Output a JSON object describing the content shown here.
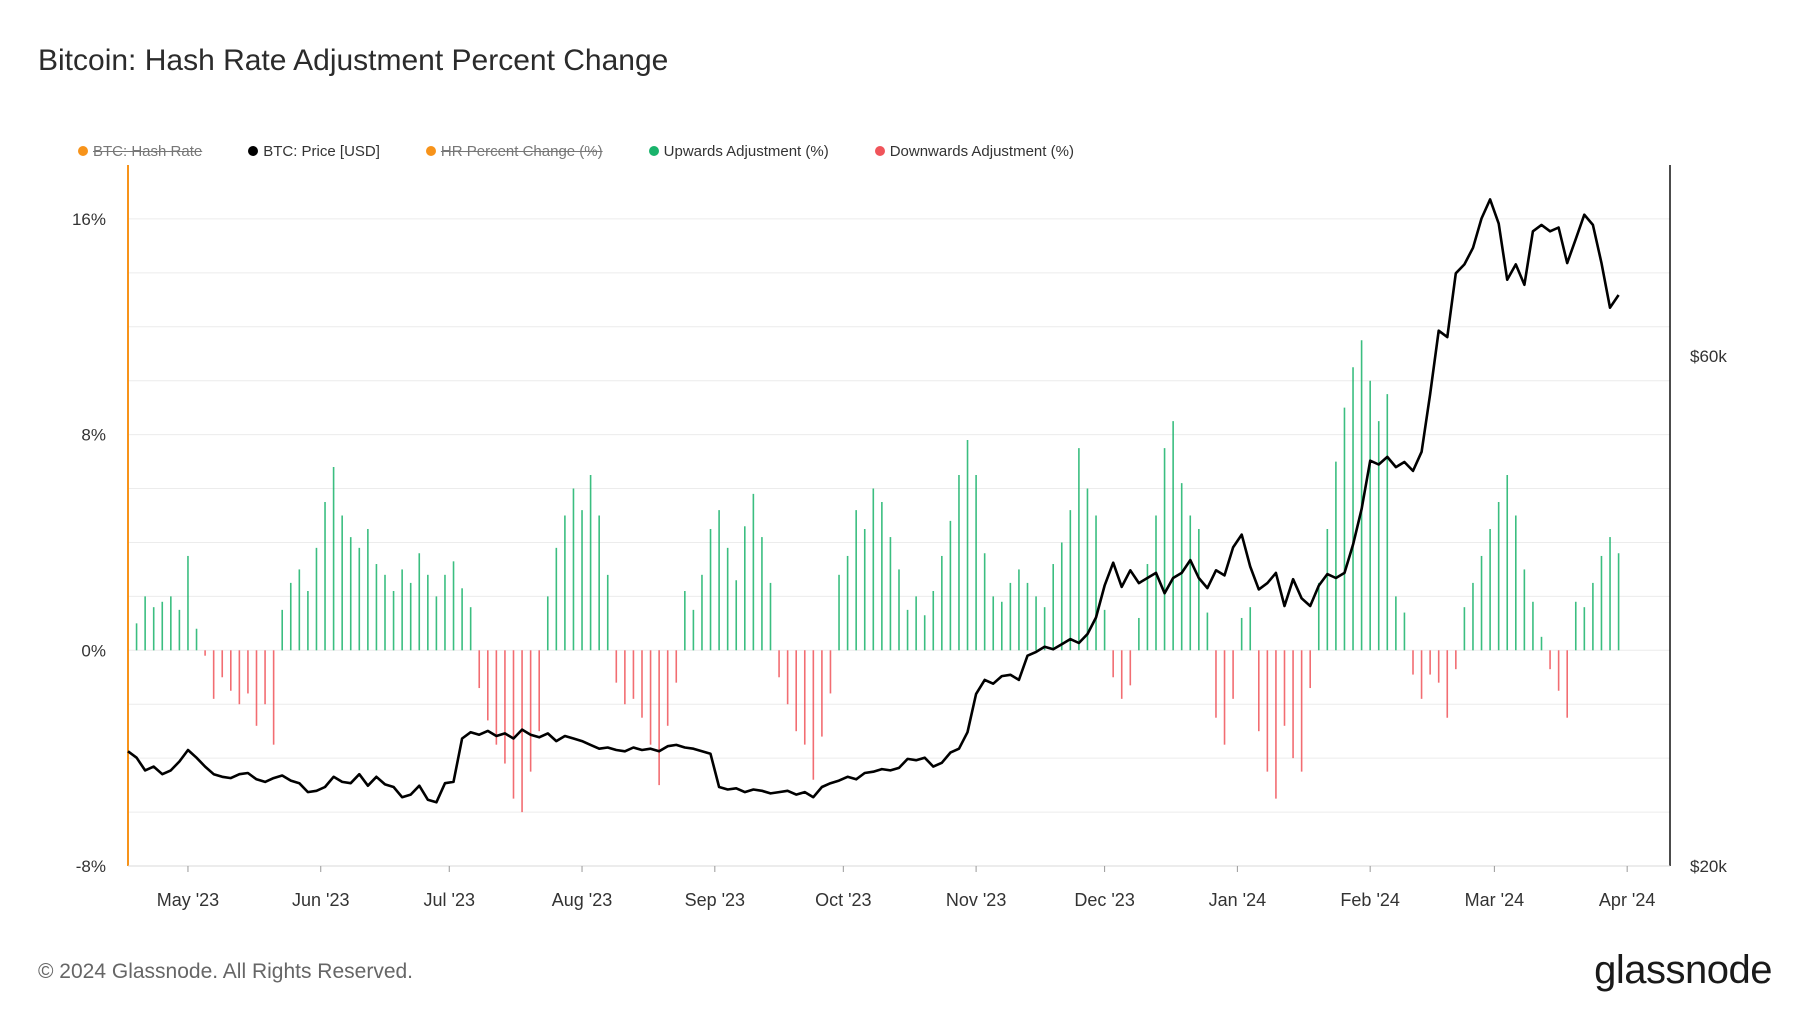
{
  "chart_data": {
    "type": "bar",
    "title": "Bitcoin: Hash Rate Adjustment Percent Change",
    "legend": [
      {
        "name": "BTC: Hash Rate",
        "color": "#f7931a",
        "disabled": true
      },
      {
        "name": "BTC: Price [USD]",
        "color": "#000000",
        "disabled": false
      },
      {
        "name": "HR Percent Change (%)",
        "color": "#f7931a",
        "disabled": true
      },
      {
        "name": "Upwards Adjustment (%)",
        "color": "#19b36b",
        "disabled": false
      },
      {
        "name": "Downwards Adjustment (%)",
        "color": "#f0545a",
        "disabled": false
      }
    ],
    "x_ticks": [
      "May '23",
      "Jun '23",
      "Jul '23",
      "Aug '23",
      "Sep '23",
      "Oct '23",
      "Nov '23",
      "Dec '23",
      "Jan '24",
      "Feb '24",
      "Mar '24",
      "Apr '24"
    ],
    "y_left": {
      "ticks": [
        "16%",
        "8%",
        "0%",
        "-8%"
      ],
      "tick_values": [
        16,
        8,
        0,
        -8
      ],
      "range": [
        -8,
        18
      ]
    },
    "y_right": {
      "ticks": [
        "$60k",
        "$20k"
      ],
      "tick_values": [
        60000,
        20000
      ],
      "range": [
        20000,
        75000
      ]
    },
    "time_range_days": [
      0,
      360
    ],
    "month_tick_days": [
      14,
      45,
      75,
      106,
      137,
      167,
      198,
      228,
      259,
      290,
      319,
      350
    ],
    "hash_rate_change_pct": [
      [
        0,
        0.3
      ],
      [
        2,
        1.0
      ],
      [
        4,
        2.0
      ],
      [
        6,
        1.6
      ],
      [
        8,
        1.8
      ],
      [
        10,
        2.0
      ],
      [
        12,
        1.5
      ],
      [
        14,
        3.5
      ],
      [
        16,
        0.8
      ],
      [
        18,
        -0.2
      ],
      [
        20,
        -1.8
      ],
      [
        22,
        -1.0
      ],
      [
        24,
        -1.5
      ],
      [
        26,
        -2.0
      ],
      [
        28,
        -1.6
      ],
      [
        30,
        -2.8
      ],
      [
        32,
        -2.0
      ],
      [
        34,
        -3.5
      ],
      [
        36,
        1.5
      ],
      [
        38,
        2.5
      ],
      [
        40,
        3.0
      ],
      [
        42,
        2.2
      ],
      [
        44,
        3.8
      ],
      [
        46,
        5.5
      ],
      [
        48,
        6.8
      ],
      [
        50,
        5.0
      ],
      [
        52,
        4.2
      ],
      [
        54,
        3.8
      ],
      [
        56,
        4.5
      ],
      [
        58,
        3.2
      ],
      [
        60,
        2.8
      ],
      [
        62,
        2.2
      ],
      [
        64,
        3.0
      ],
      [
        66,
        2.5
      ],
      [
        68,
        3.6
      ],
      [
        70,
        2.8
      ],
      [
        72,
        2.0
      ],
      [
        74,
        2.8
      ],
      [
        76,
        3.3
      ],
      [
        78,
        2.3
      ],
      [
        80,
        1.6
      ],
      [
        82,
        -1.4
      ],
      [
        84,
        -2.6
      ],
      [
        86,
        -3.5
      ],
      [
        88,
        -4.2
      ],
      [
        90,
        -5.5
      ],
      [
        92,
        -6.0
      ],
      [
        94,
        -4.5
      ],
      [
        96,
        -3.0
      ],
      [
        98,
        2.0
      ],
      [
        100,
        3.8
      ],
      [
        102,
        5.0
      ],
      [
        104,
        6.0
      ],
      [
        106,
        5.2
      ],
      [
        108,
        6.5
      ],
      [
        110,
        5.0
      ],
      [
        112,
        2.8
      ],
      [
        114,
        -1.2
      ],
      [
        116,
        -2.0
      ],
      [
        118,
        -1.8
      ],
      [
        120,
        -2.5
      ],
      [
        122,
        -3.5
      ],
      [
        124,
        -5.0
      ],
      [
        126,
        -2.8
      ],
      [
        128,
        -1.2
      ],
      [
        130,
        2.2
      ],
      [
        132,
        1.5
      ],
      [
        134,
        2.8
      ],
      [
        136,
        4.5
      ],
      [
        138,
        5.2
      ],
      [
        140,
        3.8
      ],
      [
        142,
        2.6
      ],
      [
        144,
        4.6
      ],
      [
        146,
        5.8
      ],
      [
        148,
        4.2
      ],
      [
        150,
        2.5
      ],
      [
        152,
        -1.0
      ],
      [
        154,
        -2.0
      ],
      [
        156,
        -3.0
      ],
      [
        158,
        -3.5
      ],
      [
        160,
        -4.8
      ],
      [
        162,
        -3.2
      ],
      [
        164,
        -1.6
      ],
      [
        166,
        2.8
      ],
      [
        168,
        3.5
      ],
      [
        170,
        5.2
      ],
      [
        172,
        4.5
      ],
      [
        174,
        6.0
      ],
      [
        176,
        5.5
      ],
      [
        178,
        4.2
      ],
      [
        180,
        3.0
      ],
      [
        182,
        1.5
      ],
      [
        184,
        2.0
      ],
      [
        186,
        1.3
      ],
      [
        188,
        2.2
      ],
      [
        190,
        3.5
      ],
      [
        192,
        4.8
      ],
      [
        194,
        6.5
      ],
      [
        196,
        7.8
      ],
      [
        198,
        6.5
      ],
      [
        200,
        3.6
      ],
      [
        202,
        2.0
      ],
      [
        204,
        1.8
      ],
      [
        206,
        2.5
      ],
      [
        208,
        3.0
      ],
      [
        210,
        2.5
      ],
      [
        212,
        2.0
      ],
      [
        214,
        1.6
      ],
      [
        216,
        3.2
      ],
      [
        218,
        4.0
      ],
      [
        220,
        5.2
      ],
      [
        222,
        7.5
      ],
      [
        224,
        6.0
      ],
      [
        226,
        5.0
      ],
      [
        228,
        1.5
      ],
      [
        230,
        -1.0
      ],
      [
        232,
        -1.8
      ],
      [
        234,
        -1.3
      ],
      [
        236,
        1.2
      ],
      [
        238,
        3.2
      ],
      [
        240,
        5.0
      ],
      [
        242,
        7.5
      ],
      [
        244,
        8.5
      ],
      [
        246,
        6.2
      ],
      [
        248,
        5.0
      ],
      [
        250,
        4.5
      ],
      [
        252,
        1.4
      ],
      [
        254,
        -2.5
      ],
      [
        256,
        -3.5
      ],
      [
        258,
        -1.8
      ],
      [
        260,
        1.2
      ],
      [
        262,
        1.6
      ],
      [
        264,
        -3.0
      ],
      [
        266,
        -4.5
      ],
      [
        268,
        -5.5
      ],
      [
        270,
        -2.8
      ],
      [
        272,
        -4.0
      ],
      [
        274,
        -4.5
      ],
      [
        276,
        -1.4
      ],
      [
        278,
        2.5
      ],
      [
        280,
        4.5
      ],
      [
        282,
        7.0
      ],
      [
        284,
        9.0
      ],
      [
        286,
        10.5
      ],
      [
        288,
        11.5
      ],
      [
        290,
        10.0
      ],
      [
        292,
        8.5
      ],
      [
        294,
        9.5
      ],
      [
        296,
        2.0
      ],
      [
        298,
        1.4
      ],
      [
        300,
        -0.9
      ],
      [
        302,
        -1.8
      ],
      [
        304,
        -0.9
      ],
      [
        306,
        -1.2
      ],
      [
        308,
        -2.5
      ],
      [
        310,
        -0.7
      ],
      [
        312,
        1.6
      ],
      [
        314,
        2.5
      ],
      [
        316,
        3.5
      ],
      [
        318,
        4.5
      ],
      [
        320,
        5.5
      ],
      [
        322,
        6.5
      ],
      [
        324,
        5.0
      ],
      [
        326,
        3.0
      ],
      [
        328,
        1.8
      ],
      [
        330,
        0.5
      ],
      [
        332,
        -0.7
      ],
      [
        334,
        -1.5
      ],
      [
        336,
        -2.5
      ],
      [
        338,
        1.8
      ],
      [
        340,
        1.6
      ],
      [
        342,
        2.5
      ],
      [
        344,
        3.5
      ],
      [
        346,
        4.2
      ],
      [
        348,
        3.6
      ]
    ],
    "btc_price_usd": [
      [
        0,
        29000
      ],
      [
        2,
        28500
      ],
      [
        4,
        27500
      ],
      [
        6,
        27800
      ],
      [
        8,
        27200
      ],
      [
        10,
        27500
      ],
      [
        12,
        28200
      ],
      [
        14,
        29100
      ],
      [
        16,
        28500
      ],
      [
        18,
        27800
      ],
      [
        20,
        27200
      ],
      [
        22,
        27000
      ],
      [
        24,
        26900
      ],
      [
        26,
        27200
      ],
      [
        28,
        27300
      ],
      [
        30,
        26800
      ],
      [
        32,
        26600
      ],
      [
        34,
        26900
      ],
      [
        36,
        27100
      ],
      [
        38,
        26700
      ],
      [
        40,
        26500
      ],
      [
        42,
        25800
      ],
      [
        44,
        25900
      ],
      [
        46,
        26200
      ],
      [
        48,
        27000
      ],
      [
        50,
        26600
      ],
      [
        52,
        26500
      ],
      [
        54,
        27200
      ],
      [
        56,
        26300
      ],
      [
        58,
        27000
      ],
      [
        60,
        26400
      ],
      [
        62,
        26200
      ],
      [
        64,
        25400
      ],
      [
        66,
        25600
      ],
      [
        68,
        26300
      ],
      [
        70,
        25200
      ],
      [
        72,
        25000
      ],
      [
        74,
        26500
      ],
      [
        76,
        26600
      ],
      [
        78,
        30000
      ],
      [
        80,
        30500
      ],
      [
        82,
        30300
      ],
      [
        84,
        30600
      ],
      [
        86,
        30200
      ],
      [
        88,
        30400
      ],
      [
        90,
        30000
      ],
      [
        92,
        30700
      ],
      [
        94,
        30300
      ],
      [
        96,
        30100
      ],
      [
        98,
        30400
      ],
      [
        100,
        29800
      ],
      [
        102,
        30200
      ],
      [
        104,
        30000
      ],
      [
        106,
        29800
      ],
      [
        108,
        29500
      ],
      [
        110,
        29200
      ],
      [
        112,
        29300
      ],
      [
        114,
        29100
      ],
      [
        116,
        29000
      ],
      [
        118,
        29300
      ],
      [
        120,
        29100
      ],
      [
        122,
        29200
      ],
      [
        124,
        29000
      ],
      [
        126,
        29400
      ],
      [
        128,
        29500
      ],
      [
        130,
        29300
      ],
      [
        132,
        29200
      ],
      [
        134,
        29000
      ],
      [
        136,
        28800
      ],
      [
        138,
        26200
      ],
      [
        140,
        26000
      ],
      [
        142,
        26100
      ],
      [
        144,
        25800
      ],
      [
        146,
        26000
      ],
      [
        148,
        25900
      ],
      [
        150,
        25700
      ],
      [
        152,
        25800
      ],
      [
        154,
        25900
      ],
      [
        156,
        25600
      ],
      [
        158,
        25800
      ],
      [
        160,
        25400
      ],
      [
        162,
        26200
      ],
      [
        164,
        26500
      ],
      [
        166,
        26700
      ],
      [
        168,
        27000
      ],
      [
        170,
        26800
      ],
      [
        172,
        27300
      ],
      [
        174,
        27400
      ],
      [
        176,
        27600
      ],
      [
        178,
        27500
      ],
      [
        180,
        27700
      ],
      [
        182,
        28400
      ],
      [
        184,
        28300
      ],
      [
        186,
        28500
      ],
      [
        188,
        27800
      ],
      [
        190,
        28100
      ],
      [
        192,
        28900
      ],
      [
        194,
        29200
      ],
      [
        196,
        30500
      ],
      [
        198,
        33500
      ],
      [
        200,
        34600
      ],
      [
        202,
        34300
      ],
      [
        204,
        34900
      ],
      [
        206,
        35000
      ],
      [
        208,
        34600
      ],
      [
        210,
        36500
      ],
      [
        212,
        36800
      ],
      [
        214,
        37200
      ],
      [
        216,
        37000
      ],
      [
        218,
        37400
      ],
      [
        220,
        37800
      ],
      [
        222,
        37500
      ],
      [
        224,
        38200
      ],
      [
        226,
        39500
      ],
      [
        228,
        42000
      ],
      [
        230,
        43800
      ],
      [
        232,
        41900
      ],
      [
        234,
        43200
      ],
      [
        236,
        42200
      ],
      [
        238,
        42600
      ],
      [
        240,
        43000
      ],
      [
        242,
        41400
      ],
      [
        244,
        42600
      ],
      [
        246,
        43000
      ],
      [
        248,
        44000
      ],
      [
        250,
        42600
      ],
      [
        252,
        41800
      ],
      [
        254,
        43200
      ],
      [
        256,
        42800
      ],
      [
        258,
        45000
      ],
      [
        260,
        46000
      ],
      [
        262,
        43500
      ],
      [
        264,
        41700
      ],
      [
        266,
        42200
      ],
      [
        268,
        43000
      ],
      [
        270,
        40400
      ],
      [
        272,
        42500
      ],
      [
        274,
        41000
      ],
      [
        276,
        40400
      ],
      [
        278,
        42000
      ],
      [
        280,
        42900
      ],
      [
        282,
        42600
      ],
      [
        284,
        43000
      ],
      [
        286,
        45200
      ],
      [
        288,
        48000
      ],
      [
        290,
        51800
      ],
      [
        292,
        51500
      ],
      [
        294,
        52100
      ],
      [
        296,
        51300
      ],
      [
        298,
        51700
      ],
      [
        300,
        51000
      ],
      [
        302,
        52500
      ],
      [
        304,
        57000
      ],
      [
        306,
        62000
      ],
      [
        308,
        61500
      ],
      [
        310,
        66500
      ],
      [
        312,
        67200
      ],
      [
        314,
        68500
      ],
      [
        316,
        70800
      ],
      [
        318,
        72300
      ],
      [
        320,
        70400
      ],
      [
        322,
        66000
      ],
      [
        324,
        67200
      ],
      [
        326,
        65600
      ],
      [
        328,
        69800
      ],
      [
        330,
        70300
      ],
      [
        332,
        69800
      ],
      [
        334,
        70100
      ],
      [
        336,
        67300
      ],
      [
        338,
        69200
      ],
      [
        340,
        71100
      ],
      [
        342,
        70300
      ],
      [
        344,
        67300
      ],
      [
        346,
        63800
      ],
      [
        348,
        64800
      ]
    ]
  },
  "footer": {
    "copyright": "© 2024 Glassnode. All Rights Reserved.",
    "brand": "glassnode"
  }
}
